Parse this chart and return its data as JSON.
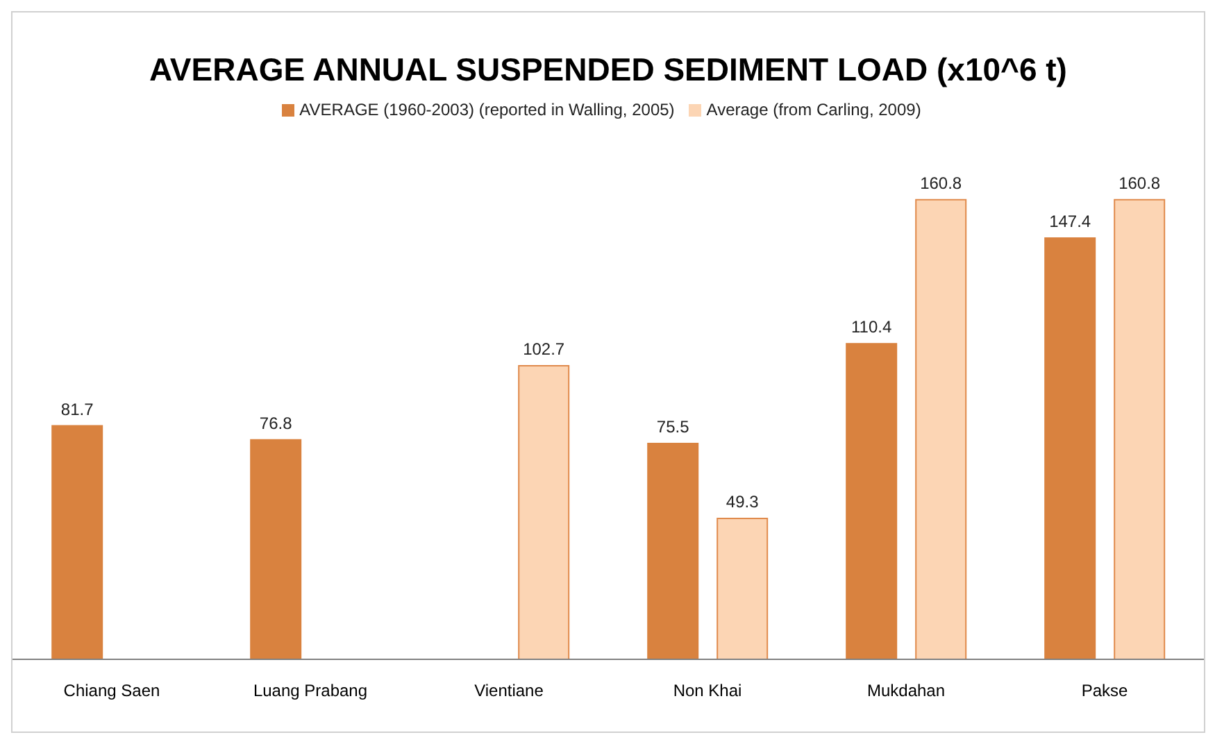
{
  "chart_data": {
    "type": "bar",
    "title": "AVERAGE ANNUAL SUSPENDED SEDIMENT LOAD (x10^6 t)",
    "categories": [
      "Chiang Saen",
      "Luang Prabang",
      "Vientiane",
      "Non Khai",
      "Mukdahan",
      "Pakse"
    ],
    "series": [
      {
        "name": "AVERAGE (1960-2003) (reported in Walling, 2005)",
        "color": "#d9823f",
        "values": [
          81.7,
          76.8,
          null,
          75.5,
          110.4,
          147.4
        ]
      },
      {
        "name": "Average (from Carling, 2009)",
        "color": "#fcd5b4",
        "values": [
          null,
          null,
          102.7,
          49.3,
          160.8,
          160.8
        ]
      }
    ],
    "data_labels": true,
    "legend": "top"
  }
}
